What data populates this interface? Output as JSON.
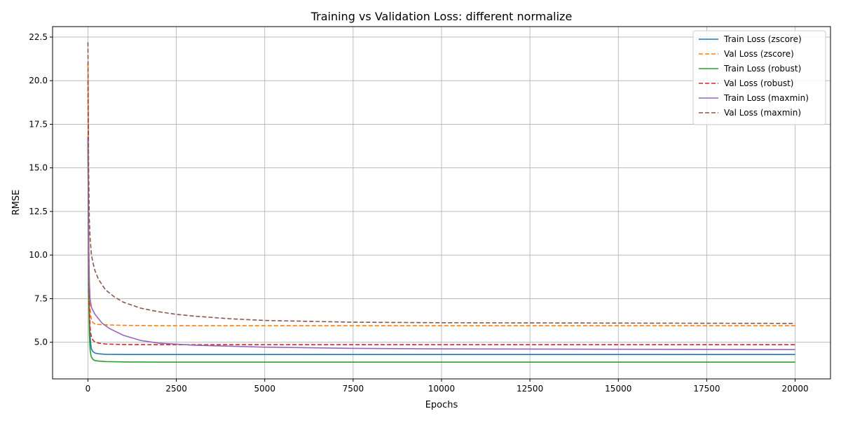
{
  "chart_data": {
    "type": "line",
    "title": "Training vs Validation Loss: different normalize",
    "xlabel": "Epochs",
    "ylabel": "RMSE",
    "xlim": [
      -1000,
      21000
    ],
    "ylim": [
      2.9,
      23.1
    ],
    "xticks": [
      0,
      2500,
      5000,
      7500,
      10000,
      12500,
      15000,
      17500,
      20000
    ],
    "yticks": [
      5.0,
      7.5,
      10.0,
      12.5,
      15.0,
      17.5,
      20.0,
      22.5
    ],
    "xtick_labels": [
      "0",
      "2500",
      "5000",
      "7500",
      "10000",
      "12500",
      "15000",
      "17500",
      "20000"
    ],
    "ytick_labels": [
      "5.0",
      "7.5",
      "10.0",
      "12.5",
      "15.0",
      "17.5",
      "20.0",
      "22.5"
    ],
    "grid": true,
    "legend_position": "top-right",
    "series": [
      {
        "name": "Train Loss (zscore)",
        "color": "#1f77b4",
        "dash": "solid",
        "x": [
          0,
          20,
          40,
          60,
          80,
          100,
          150,
          200,
          300,
          500,
          1000,
          2000,
          5000,
          10000,
          20000
        ],
        "y": [
          16.8,
          9.0,
          6.5,
          5.4,
          4.9,
          4.6,
          4.45,
          4.38,
          4.34,
          4.31,
          4.3,
          4.3,
          4.3,
          4.3,
          4.3
        ]
      },
      {
        "name": "Val Loss (zscore)",
        "color": "#ff7f0e",
        "dash": "dashed",
        "x": [
          0,
          20,
          40,
          60,
          80,
          100,
          150,
          200,
          300,
          500,
          1000,
          2000,
          5000,
          10000,
          20000
        ],
        "y": [
          21.0,
          12.0,
          8.5,
          7.0,
          6.5,
          6.3,
          6.1,
          6.05,
          6.02,
          6.0,
          5.97,
          5.95,
          5.95,
          5.95,
          5.95
        ]
      },
      {
        "name": "Train Loss (robust)",
        "color": "#2ca02c",
        "dash": "solid",
        "x": [
          0,
          20,
          40,
          60,
          80,
          100,
          150,
          200,
          300,
          500,
          1000,
          2000,
          5000,
          10000,
          20000
        ],
        "y": [
          16.5,
          8.0,
          5.5,
          4.6,
          4.3,
          4.15,
          4.0,
          3.95,
          3.92,
          3.89,
          3.87,
          3.86,
          3.86,
          3.86,
          3.86
        ]
      },
      {
        "name": "Val Loss (robust)",
        "color": "#d62728",
        "dash": "dashed",
        "x": [
          0,
          20,
          40,
          60,
          80,
          100,
          150,
          200,
          300,
          500,
          1000,
          2000,
          5000,
          10000,
          20000
        ],
        "y": [
          20.0,
          10.0,
          7.0,
          5.9,
          5.5,
          5.3,
          5.1,
          5.02,
          4.95,
          4.9,
          4.87,
          4.86,
          4.86,
          4.86,
          4.86
        ]
      },
      {
        "name": "Train Loss (maxmin)",
        "color": "#9467bd",
        "dash": "solid",
        "x": [
          0,
          20,
          40,
          60,
          100,
          200,
          400,
          600,
          1000,
          1500,
          2000,
          3000,
          5000,
          7500,
          10000,
          15000,
          20000
        ],
        "y": [
          16.8,
          11.0,
          8.5,
          7.5,
          7.0,
          6.6,
          6.1,
          5.8,
          5.4,
          5.1,
          4.95,
          4.83,
          4.72,
          4.65,
          4.62,
          4.6,
          4.58
        ]
      },
      {
        "name": "Val Loss (maxmin)",
        "color": "#8c564b",
        "dash": "dashed",
        "x": [
          0,
          20,
          40,
          60,
          100,
          150,
          200,
          300,
          500,
          750,
          1000,
          1500,
          2000,
          2500,
          3000,
          4000,
          5000,
          7500,
          10000,
          15000,
          20000
        ],
        "y": [
          22.2,
          15.0,
          12.0,
          11.0,
          10.0,
          9.5,
          9.1,
          8.6,
          8.0,
          7.6,
          7.3,
          6.95,
          6.75,
          6.6,
          6.5,
          6.35,
          6.25,
          6.15,
          6.12,
          6.1,
          6.08
        ]
      }
    ]
  }
}
